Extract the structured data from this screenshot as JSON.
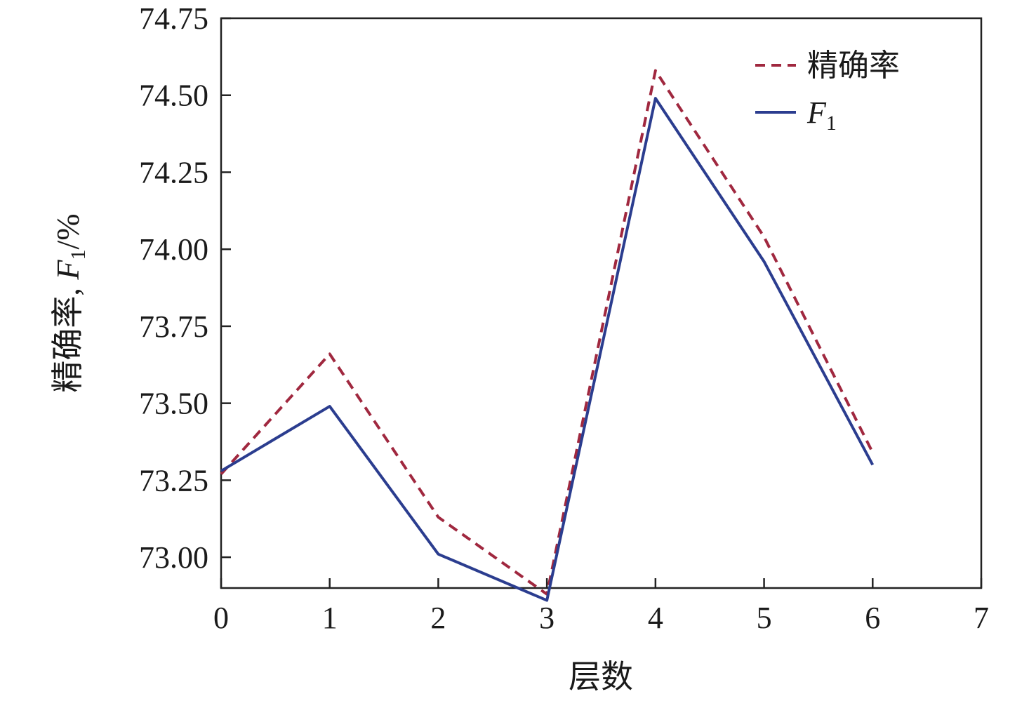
{
  "chart_data": {
    "type": "line",
    "xlabel": "层数",
    "ylabel": "精确率, F1/%",
    "ylabel_parts": {
      "main": "精确率, F",
      "sub": "1",
      "unit": "/%"
    },
    "xlim": [
      0,
      7
    ],
    "ylim": [
      72.9,
      74.75
    ],
    "x_ticks": [
      "0",
      "1",
      "2",
      "3",
      "4",
      "5",
      "6",
      "7"
    ],
    "y_ticks": [
      "73.00",
      "73.25",
      "73.50",
      "73.75",
      "74.00",
      "74.25",
      "74.50",
      "74.75"
    ],
    "grid": false,
    "legend_position": "top-right",
    "x": [
      0,
      1,
      2,
      3,
      4,
      5,
      6
    ],
    "series": [
      {
        "name": "精确率",
        "name_parts": {
          "main": "精确率",
          "sub": ""
        },
        "color": "#a0283f",
        "style": "dashed",
        "values": [
          73.27,
          73.66,
          73.13,
          72.88,
          74.58,
          74.04,
          73.34
        ]
      },
      {
        "name": "F1",
        "name_parts": {
          "main": "F",
          "sub": "1"
        },
        "color": "#2b3d8f",
        "style": "solid",
        "values": [
          73.28,
          73.49,
          73.01,
          72.86,
          74.49,
          73.96,
          73.3
        ]
      }
    ]
  }
}
